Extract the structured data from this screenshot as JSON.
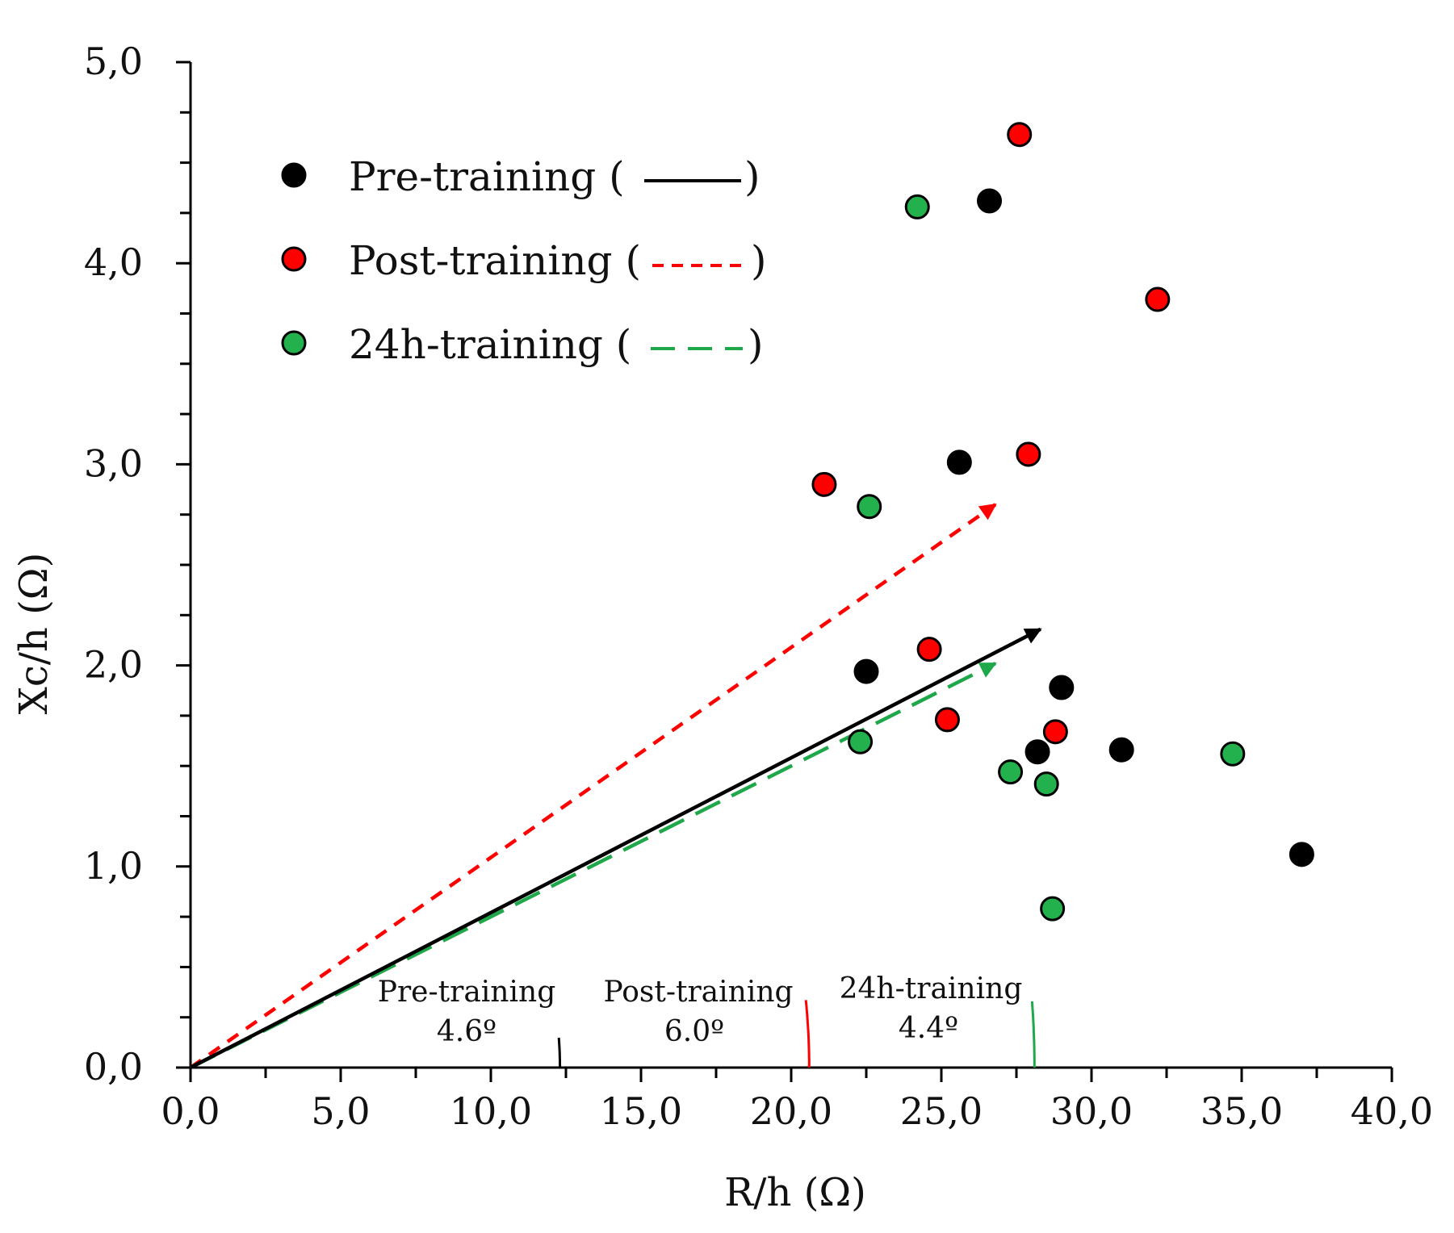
{
  "chart_data": {
    "type": "scatter",
    "title": "",
    "xlabel": "R/h (Ω)",
    "ylabel": "Xc/h (Ω)",
    "xlim": [
      0,
      40
    ],
    "ylim": [
      0,
      5
    ],
    "x_major_step": 5,
    "x_minor_step": 2.5,
    "y_major_step": 1,
    "y_minor_step": 0.25,
    "x_tick_labels": [
      "0,0",
      "5,0",
      "10,0",
      "15,0",
      "20,0",
      "25,0",
      "30,0",
      "35,0",
      "40,0"
    ],
    "y_tick_labels": [
      "0,0",
      "1,0",
      "2,0",
      "3,0",
      "4,0",
      "5,0"
    ],
    "grid": false,
    "legend_position": "top-left",
    "series": [
      {
        "name": "Pre-training",
        "legend_label": "Pre-training (",
        "legend_close": ")",
        "color": "#000000",
        "line_style": "solid",
        "points": [
          [
            26.6,
            4.31
          ],
          [
            25.6,
            3.01
          ],
          [
            22.5,
            1.97
          ],
          [
            29.0,
            1.89
          ],
          [
            28.2,
            1.57
          ],
          [
            31.0,
            1.58
          ],
          [
            37.0,
            1.06
          ]
        ],
        "vector_end": [
          28.3,
          2.18
        ],
        "angle_label": "Pre-training",
        "angle_value": "4.6º",
        "arc_radius": 12.3
      },
      {
        "name": "Post-training",
        "legend_label": "Post-training (",
        "legend_close": ")",
        "color": "#ff0000",
        "line_style": "dashed",
        "points": [
          [
            27.6,
            4.64
          ],
          [
            32.2,
            3.82
          ],
          [
            27.9,
            3.05
          ],
          [
            21.1,
            2.9
          ],
          [
            24.6,
            2.08
          ],
          [
            25.2,
            1.73
          ],
          [
            28.8,
            1.67
          ]
        ],
        "vector_end": [
          26.8,
          2.8
        ],
        "angle_label": "Post-training",
        "angle_value": "6.0º",
        "arc_radius": 20.6
      },
      {
        "name": "24h-training",
        "legend_label": "24h-training (",
        "legend_close": ")",
        "color": "#1fa84a",
        "line_style": "long-dashed",
        "points": [
          [
            24.2,
            4.28
          ],
          [
            22.6,
            2.79
          ],
          [
            22.3,
            1.62
          ],
          [
            27.3,
            1.47
          ],
          [
            28.5,
            1.41
          ],
          [
            34.7,
            1.56
          ],
          [
            28.7,
            0.79
          ]
        ],
        "vector_end": [
          26.8,
          2.01
        ],
        "angle_label": "24h-training",
        "angle_value": "4.4º",
        "arc_radius": 28.1
      }
    ]
  },
  "colors": {
    "axis": "#000000",
    "pre_marker": "#000000",
    "post_marker": "#ff0000",
    "h24_marker": "#22b14c",
    "h24_line": "#1fa84a"
  }
}
